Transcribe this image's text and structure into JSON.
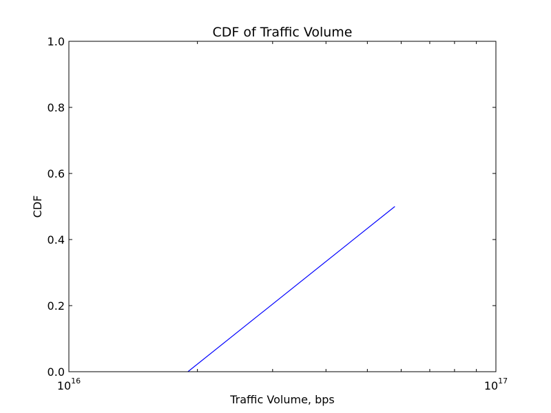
{
  "chart_data": {
    "type": "line",
    "title": "CDF of Traffic Volume",
    "xlabel": "Traffic Volume, bps",
    "ylabel": "CDF",
    "xscale": "log",
    "xlim": [
      1e+16,
      1e+17
    ],
    "ylim": [
      0.0,
      1.0
    ],
    "x_ticks": [
      {
        "value": 1e+16,
        "base": "10",
        "exponent": "16"
      },
      {
        "value": 1e+17,
        "base": "10",
        "exponent": "17"
      }
    ],
    "y_ticks": [
      {
        "value": 0.0,
        "label": "0.0"
      },
      {
        "value": 0.2,
        "label": "0.2"
      },
      {
        "value": 0.4,
        "label": "0.4"
      },
      {
        "value": 0.6,
        "label": "0.6"
      },
      {
        "value": 0.8,
        "label": "0.8"
      },
      {
        "value": 1.0,
        "label": "1.0"
      }
    ],
    "grid": false,
    "series": [
      {
        "color": "#0000ff",
        "x": [
          1.9e+16,
          5.8e+16
        ],
        "y": [
          0.0,
          0.5
        ]
      }
    ]
  }
}
